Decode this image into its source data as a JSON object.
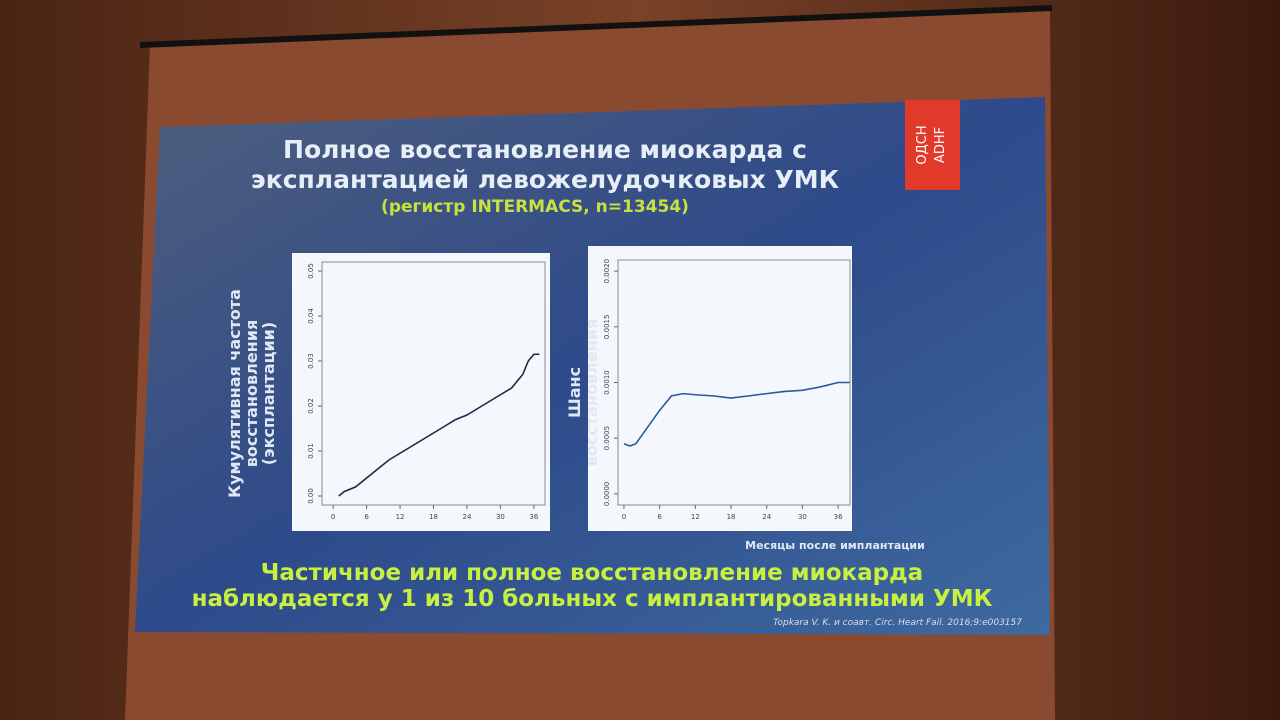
{
  "slide": {
    "logo": [
      "ОДСН",
      "ADHF"
    ],
    "title_lines": [
      "Полное восстановление миокарда с",
      "эксплантацией левожелудочковых УМК"
    ],
    "subtitle": "(регистр INTERMACS,  n=13454)",
    "x_axis_label": "Месяцы после имплантации",
    "conclusion_lines": [
      "Частичное или полное восстановление миокарда",
      "наблюдается у 1 из 10 больных с имплантированными УМК"
    ],
    "citation": "Topkara V. K. и соавт. Circ. Heart Fail. 2016;9:e003157"
  },
  "chart_data": [
    {
      "type": "line",
      "y_label_lines": [
        "Кумулятивная частота",
        "восстановления",
        "(эксплантации)"
      ],
      "color": "#1a2a4a",
      "x": [
        1,
        2,
        4,
        6,
        8,
        10,
        12,
        14,
        16,
        18,
        20,
        22,
        24,
        26,
        28,
        30,
        32,
        34,
        35,
        36,
        37
      ],
      "values": [
        0.0,
        0.001,
        0.002,
        0.004,
        0.006,
        0.008,
        0.0095,
        0.011,
        0.0125,
        0.014,
        0.0155,
        0.017,
        0.018,
        0.0195,
        0.021,
        0.0225,
        0.024,
        0.027,
        0.03,
        0.0315,
        0.0315
      ],
      "xlim": [
        -2,
        38
      ],
      "xticks": [
        0,
        6,
        12,
        18,
        24,
        30,
        36
      ],
      "ylim": [
        -0.002,
        0.052
      ],
      "yticks": [
        {
          "value": 0,
          "label": "0.00"
        },
        {
          "value": 0.01,
          "label": "0.01"
        },
        {
          "value": 0.02,
          "label": "0.02"
        },
        {
          "value": 0.03,
          "label": "0.03"
        },
        {
          "value": 0.04,
          "label": "0.04"
        },
        {
          "value": 0.05,
          "label": "0.05"
        }
      ]
    },
    {
      "type": "line",
      "y_label_lines": [
        "Шанс",
        "восстановления"
      ],
      "color": "#2a5a9a",
      "x": [
        0,
        1,
        2,
        4,
        6,
        8,
        10,
        12,
        15,
        18,
        21,
        24,
        27,
        30,
        33,
        36,
        38
      ],
      "values": [
        0.00045,
        0.00043,
        0.00045,
        0.0006,
        0.00075,
        0.00088,
        0.0009,
        0.00089,
        0.00088,
        0.00086,
        0.00088,
        0.0009,
        0.00092,
        0.00093,
        0.00096,
        0.001,
        0.001
      ],
      "xlim": [
        -1,
        38
      ],
      "xticks": [
        0,
        6,
        12,
        18,
        24,
        30,
        36
      ],
      "ylim": [
        -0.0001,
        0.0021
      ],
      "yticks": [
        {
          "value": 0,
          "label": "0.0000"
        },
        {
          "value": 0.0005,
          "label": "0.0005"
        },
        {
          "value": 0.001,
          "label": "0.0010"
        },
        {
          "value": 0.0015,
          "label": "0.0015"
        },
        {
          "value": 0.002,
          "label": "0.0020"
        }
      ]
    }
  ]
}
